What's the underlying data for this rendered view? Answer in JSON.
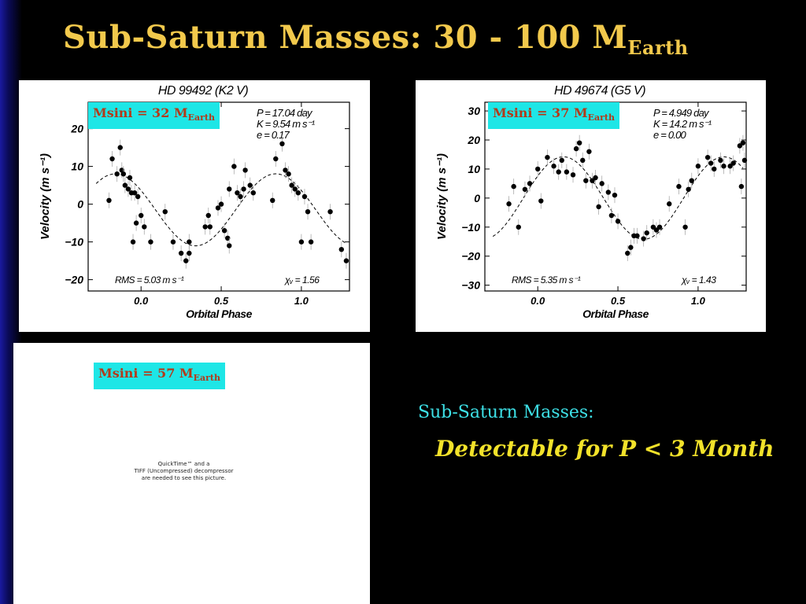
{
  "slide": {
    "title_main": "Sub-Saturn Masses:  30 - 100 M",
    "title_sub": "Earth",
    "side_heading": "Sub-Saturn Masses:",
    "side_text": "Detectable for P < 3 Month"
  },
  "badges": [
    {
      "main": "Msini = 32 M",
      "sub": "Earth"
    },
    {
      "main": "Msini = 37 M",
      "sub": "Earth"
    },
    {
      "main": "Msini = 57 M",
      "sub": "Earth"
    }
  ],
  "placeholder": {
    "line1": "QuickTime™ and a",
    "line2": "TIFF (Uncompressed) decompressor",
    "line3": "are needed to see this picture."
  },
  "colors": {
    "title": "#f2c94c",
    "badge_bg": "#1ee6e6",
    "badge_text": "#b33a1a",
    "side_heading": "#3de0e6",
    "side_text": "#f2e22a"
  },
  "chart_data": [
    {
      "type": "scatter",
      "title": "HD 99492  (K2 V)",
      "xlabel": "Orbital Phase",
      "ylabel": "Velocity  (m s⁻¹)",
      "xlim": [
        -0.33,
        1.3
      ],
      "ylim": [
        -23,
        27
      ],
      "xticks": [
        0.0,
        0.5,
        1.0
      ],
      "xtick_labels": [
        "0.0",
        "0.5",
        "1.0"
      ],
      "yticks": [
        20,
        10,
        0,
        -10,
        -20
      ],
      "ytick_labels": [
        "20",
        "10",
        "0",
        "−10",
        "−20"
      ],
      "params": [
        "P = 17.04 day",
        "K = 9.54 m s⁻¹",
        "e = 0.17"
      ],
      "rms": "RMS = 5.03 m s⁻¹",
      "chi": "χᵥ = 1.56",
      "fit": {
        "K": 9.54,
        "phase_max": 0.84,
        "offset": -1.5
      },
      "points": [
        {
          "x": -0.2,
          "y": 1
        },
        {
          "x": -0.18,
          "y": 12
        },
        {
          "x": -0.15,
          "y": 8
        },
        {
          "x": -0.13,
          "y": 15
        },
        {
          "x": -0.12,
          "y": 9
        },
        {
          "x": -0.11,
          "y": 8
        },
        {
          "x": -0.1,
          "y": 5
        },
        {
          "x": -0.08,
          "y": 4
        },
        {
          "x": -0.07,
          "y": 7
        },
        {
          "x": -0.06,
          "y": 3
        },
        {
          "x": -0.05,
          "y": -10
        },
        {
          "x": -0.04,
          "y": 3
        },
        {
          "x": -0.03,
          "y": -5
        },
        {
          "x": -0.02,
          "y": 2
        },
        {
          "x": 0.0,
          "y": -3
        },
        {
          "x": 0.02,
          "y": -6
        },
        {
          "x": 0.06,
          "y": -10
        },
        {
          "x": 0.15,
          "y": -2
        },
        {
          "x": 0.2,
          "y": -10
        },
        {
          "x": 0.25,
          "y": -13
        },
        {
          "x": 0.28,
          "y": -15
        },
        {
          "x": 0.3,
          "y": -10
        },
        {
          "x": 0.3,
          "y": -13
        },
        {
          "x": 0.4,
          "y": -6
        },
        {
          "x": 0.42,
          "y": -3
        },
        {
          "x": 0.43,
          "y": -6
        },
        {
          "x": 0.48,
          "y": -1
        },
        {
          "x": 0.5,
          "y": 0
        },
        {
          "x": 0.52,
          "y": -7
        },
        {
          "x": 0.54,
          "y": -9
        },
        {
          "x": 0.55,
          "y": -11
        },
        {
          "x": 0.55,
          "y": 4
        },
        {
          "x": 0.58,
          "y": 10
        },
        {
          "x": 0.6,
          "y": 3
        },
        {
          "x": 0.62,
          "y": 2
        },
        {
          "x": 0.64,
          "y": 4
        },
        {
          "x": 0.65,
          "y": 9
        },
        {
          "x": 0.68,
          "y": 5
        },
        {
          "x": 0.7,
          "y": 3
        },
        {
          "x": 0.82,
          "y": 1
        },
        {
          "x": 0.84,
          "y": 12
        },
        {
          "x": 0.88,
          "y": 16
        },
        {
          "x": 0.9,
          "y": 9
        },
        {
          "x": 0.92,
          "y": 8
        },
        {
          "x": 0.94,
          "y": 5
        },
        {
          "x": 0.96,
          "y": 4
        },
        {
          "x": 0.98,
          "y": 3
        },
        {
          "x": 1.0,
          "y": -10
        },
        {
          "x": 1.02,
          "y": 2
        },
        {
          "x": 1.04,
          "y": -2
        },
        {
          "x": 1.06,
          "y": -10
        },
        {
          "x": 1.18,
          "y": -2
        },
        {
          "x": 1.25,
          "y": -12
        },
        {
          "x": 1.28,
          "y": -15
        }
      ]
    },
    {
      "type": "scatter",
      "title": "HD 49674  (G5 V)",
      "xlabel": "Orbital Phase",
      "ylabel": "Velocity  (m s⁻¹)",
      "xlim": [
        -0.33,
        1.3
      ],
      "ylim": [
        -32,
        33
      ],
      "xticks": [
        0.0,
        0.5,
        1.0
      ],
      "xtick_labels": [
        "0.0",
        "0.5",
        "1.0"
      ],
      "yticks": [
        30,
        20,
        10,
        0,
        -10,
        -20,
        -30
      ],
      "ytick_labels": [
        "30",
        "20",
        "10",
        "0",
        "−10",
        "−20",
        "−30"
      ],
      "params": [
        "P = 4.949 day",
        "K = 14.2 m s⁻¹",
        "e = 0.00"
      ],
      "rms": "RMS = 5.35 m s⁻¹",
      "chi": "χᵥ = 1.43",
      "fit": {
        "K": 14.2,
        "phase_max": 0.16,
        "offset": 0
      },
      "points": [
        {
          "x": -0.18,
          "y": -2
        },
        {
          "x": -0.15,
          "y": 4
        },
        {
          "x": -0.12,
          "y": -10
        },
        {
          "x": -0.08,
          "y": 3
        },
        {
          "x": -0.05,
          "y": 5
        },
        {
          "x": 0.0,
          "y": 10
        },
        {
          "x": 0.02,
          "y": -1
        },
        {
          "x": 0.06,
          "y": 14
        },
        {
          "x": 0.1,
          "y": 11
        },
        {
          "x": 0.13,
          "y": 9
        },
        {
          "x": 0.15,
          "y": 13
        },
        {
          "x": 0.18,
          "y": 9
        },
        {
          "x": 0.22,
          "y": 8
        },
        {
          "x": 0.24,
          "y": 17
        },
        {
          "x": 0.26,
          "y": 19
        },
        {
          "x": 0.28,
          "y": 13
        },
        {
          "x": 0.3,
          "y": 6
        },
        {
          "x": 0.32,
          "y": 16
        },
        {
          "x": 0.34,
          "y": 6
        },
        {
          "x": 0.36,
          "y": 7
        },
        {
          "x": 0.38,
          "y": -3
        },
        {
          "x": 0.4,
          "y": 5
        },
        {
          "x": 0.44,
          "y": 2
        },
        {
          "x": 0.46,
          "y": -6
        },
        {
          "x": 0.48,
          "y": 1
        },
        {
          "x": 0.5,
          "y": -8
        },
        {
          "x": 0.56,
          "y": -19
        },
        {
          "x": 0.58,
          "y": -17
        },
        {
          "x": 0.6,
          "y": -13
        },
        {
          "x": 0.62,
          "y": -13
        },
        {
          "x": 0.66,
          "y": -14
        },
        {
          "x": 0.68,
          "y": -12
        },
        {
          "x": 0.72,
          "y": -10
        },
        {
          "x": 0.74,
          "y": -11
        },
        {
          "x": 0.76,
          "y": -10
        },
        {
          "x": 0.82,
          "y": -2
        },
        {
          "x": 0.88,
          "y": 4
        },
        {
          "x": 0.92,
          "y": -10
        },
        {
          "x": 0.94,
          "y": 3
        },
        {
          "x": 0.96,
          "y": 6
        },
        {
          "x": 1.0,
          "y": 11
        },
        {
          "x": 1.06,
          "y": 14
        },
        {
          "x": 1.08,
          "y": 12
        },
        {
          "x": 1.1,
          "y": 10
        },
        {
          "x": 1.14,
          "y": 13
        },
        {
          "x": 1.16,
          "y": 11
        },
        {
          "x": 1.2,
          "y": 11
        },
        {
          "x": 1.22,
          "y": 12
        },
        {
          "x": 1.26,
          "y": 18
        },
        {
          "x": 1.27,
          "y": 4
        },
        {
          "x": 1.28,
          "y": 19
        },
        {
          "x": 1.29,
          "y": 13
        }
      ]
    }
  ]
}
